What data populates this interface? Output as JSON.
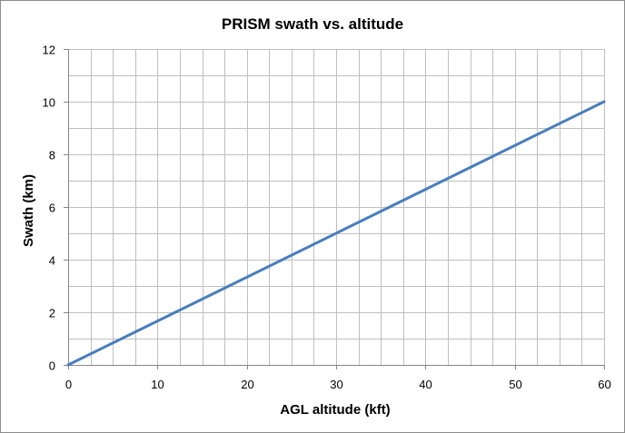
{
  "chart_data": {
    "type": "line",
    "title": "PRISM swath vs. altitude",
    "xlabel": "AGL altitude (kft)",
    "ylabel": "Swath (km)",
    "xlim": [
      0,
      60
    ],
    "ylim": [
      0,
      12
    ],
    "x_ticks": [
      0,
      10,
      20,
      30,
      40,
      50,
      60
    ],
    "y_ticks": [
      0,
      2,
      4,
      6,
      8,
      10,
      12
    ],
    "x_minor_step": 2.5,
    "y_minor_step": 1,
    "grid": true,
    "legend": "none",
    "series": [
      {
        "x": [
          0,
          60
        ],
        "y": [
          0,
          10
        ],
        "color": "#4a7ebb"
      }
    ],
    "colors": {
      "line": "#4a7ebb",
      "grid": "#bfbfbf",
      "axis": "#868686"
    }
  }
}
